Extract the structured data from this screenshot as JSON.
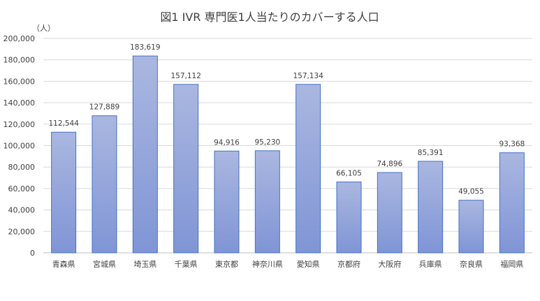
{
  "chart_data": {
    "type": "bar",
    "title": "図1  IVR 専門医1人当たりのカバーする人口",
    "unit_label": "（人）",
    "xlabel": "",
    "ylabel": "",
    "ylim": [
      0,
      200000
    ],
    "y_ticks": [
      0,
      20000,
      40000,
      60000,
      80000,
      100000,
      120000,
      140000,
      160000,
      180000,
      200000
    ],
    "y_tick_labels": [
      "0",
      "20,000",
      "40,000",
      "60,000",
      "80,000",
      "100,000",
      "120,000",
      "140,000",
      "160,000",
      "180,000",
      "200,000"
    ],
    "grid": true,
    "legend": "none",
    "categories": [
      "青森県",
      "宮城県",
      "埼玉県",
      "千葉県",
      "東京都",
      "神奈川県",
      "愛知県",
      "京都府",
      "大阪府",
      "兵庫県",
      "奈良県",
      "福岡県"
    ],
    "values": [
      112544,
      127889,
      183619,
      157112,
      94916,
      95230,
      157134,
      66105,
      74896,
      85391,
      49055,
      93368
    ],
    "value_labels": [
      "112,544",
      "127,889",
      "183,619",
      "157,112",
      "94,916",
      "95,230",
      "157,134",
      "66,105",
      "74,896",
      "85,391",
      "49,055",
      "93,368"
    ],
    "colors": {
      "bar_top": "#aab7e0",
      "bar_bottom": "#8095d6",
      "bar_stroke": "#4472c4",
      "grid": "#d9d9d9",
      "axis": "#bfbfbf",
      "text": "#404040",
      "title": "#404040"
    }
  }
}
